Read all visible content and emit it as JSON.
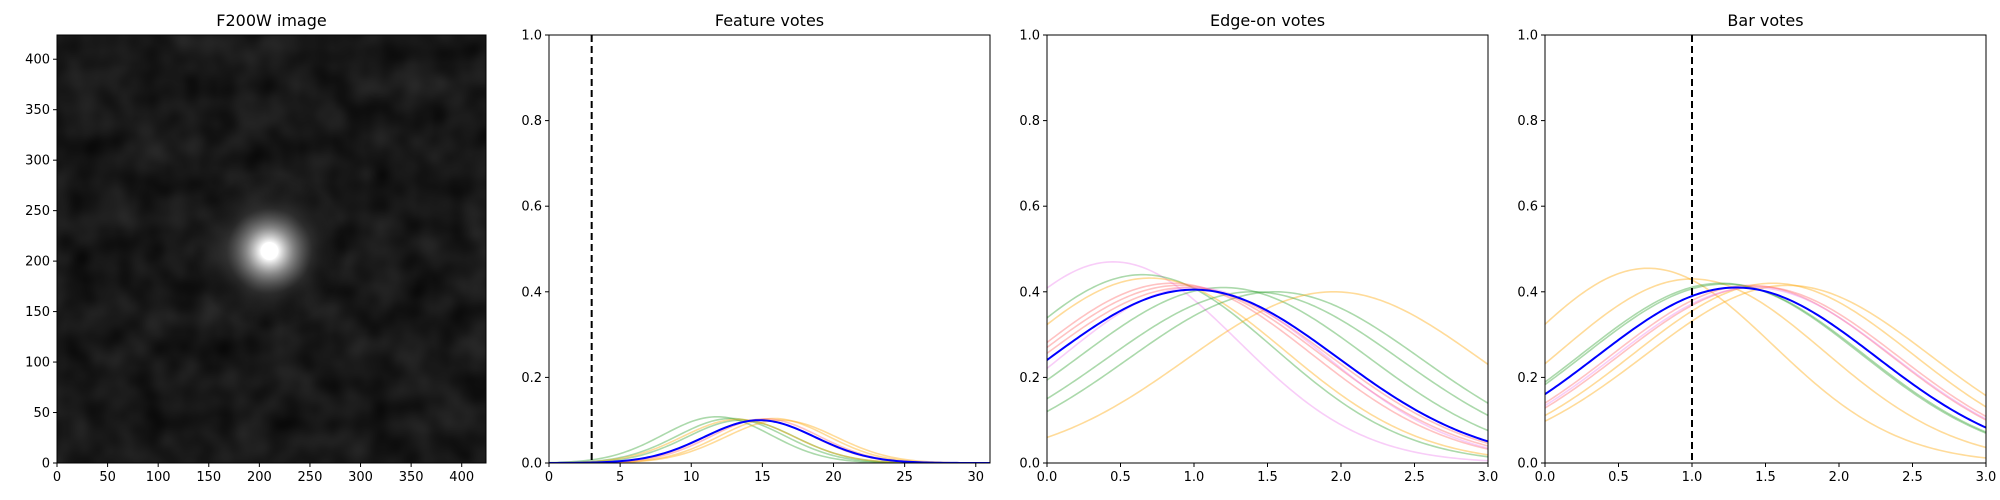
{
  "chart_data": [
    {
      "type": "image",
      "title": "F200W image",
      "xlim": [
        0,
        424
      ],
      "ylim": [
        424,
        0
      ],
      "x_ticks": [
        0,
        50,
        100,
        150,
        200,
        250,
        300,
        350,
        400
      ],
      "y_ticks": [
        0,
        50,
        100,
        150,
        200,
        250,
        300,
        350,
        400
      ],
      "source": {
        "x": 210,
        "y": 210
      },
      "colormap": "gray"
    },
    {
      "type": "line",
      "title": "Feature votes",
      "xlabel": "",
      "ylabel": "",
      "xlim": [
        0,
        31
      ],
      "ylim": [
        0,
        1.0
      ],
      "x_ticks": [
        0,
        5,
        10,
        15,
        20,
        25,
        30
      ],
      "y_ticks": [
        0.0,
        0.2,
        0.4,
        0.6,
        0.8,
        1.0
      ],
      "vline": 3,
      "curves": [
        {
          "color": "#2ca02c",
          "mu": 11.8,
          "sigma": 3.8,
          "peak": 0.108
        },
        {
          "color": "#2ca02c",
          "mu": 12.8,
          "sigma": 3.8,
          "peak": 0.104
        },
        {
          "color": "#2ca02c",
          "mu": 13.5,
          "sigma": 3.8,
          "peak": 0.1
        },
        {
          "color": "#ffa500",
          "mu": 15.8,
          "sigma": 3.8,
          "peak": 0.104
        },
        {
          "color": "#ffa500",
          "mu": 16.3,
          "sigma": 3.9,
          "peak": 0.1
        },
        {
          "color": "#ffa500",
          "mu": 13.3,
          "sigma": 3.9,
          "peak": 0.102
        },
        {
          "color": "#ff6666",
          "mu": 15.2,
          "sigma": 3.8,
          "peak": 0.103
        },
        {
          "color": "#ff6666",
          "mu": 14.8,
          "sigma": 3.8,
          "peak": 0.101
        }
      ],
      "series": [
        {
          "color": "#0000ff",
          "mu": 14.8,
          "sigma": 3.9,
          "peak": 0.1
        }
      ]
    },
    {
      "type": "line",
      "title": "Edge-on votes",
      "xlabel": "",
      "ylabel": "",
      "xlim": [
        0.0,
        3.0
      ],
      "ylim": [
        0,
        1.0
      ],
      "x_ticks": [
        0.0,
        0.5,
        1.0,
        1.5,
        2.0,
        2.5,
        3.0
      ],
      "y_ticks": [
        0.0,
        0.2,
        0.4,
        0.6,
        0.8,
        1.0
      ],
      "curves": [
        {
          "color": "#ee82ee",
          "mu": 0.45,
          "sigma": 0.85,
          "peak": 0.47
        },
        {
          "color": "#2ca02c",
          "mu": 0.65,
          "sigma": 0.9,
          "peak": 0.44
        },
        {
          "color": "#ffa500",
          "mu": 0.7,
          "sigma": 0.92,
          "peak": 0.432
        },
        {
          "color": "#2ca02c",
          "mu": 1.2,
          "sigma": 0.98,
          "peak": 0.41
        },
        {
          "color": "#2ca02c",
          "mu": 1.55,
          "sigma": 1.0,
          "peak": 0.4
        },
        {
          "color": "#ffa500",
          "mu": 1.95,
          "sigma": 1.0,
          "peak": 0.4
        },
        {
          "color": "#2ca02c",
          "mu": 1.4,
          "sigma": 1.0,
          "peak": 0.4
        },
        {
          "color": "#ff6666",
          "mu": 0.85,
          "sigma": 0.95,
          "peak": 0.42
        },
        {
          "color": "#ff6666",
          "mu": 0.9,
          "sigma": 0.97,
          "peak": 0.415
        },
        {
          "color": "#ff6666",
          "mu": 0.95,
          "sigma": 0.98,
          "peak": 0.41
        },
        {
          "color": "#ee82ee",
          "mu": 1.0,
          "sigma": 0.9,
          "peak": 0.41
        }
      ],
      "series": [
        {
          "color": "#0000ff",
          "mu": 1.0,
          "sigma": 0.98,
          "peak": 0.405
        }
      ]
    },
    {
      "type": "line",
      "title": "Bar votes",
      "xlabel": "",
      "ylabel": "",
      "xlim": [
        0.0,
        3.0
      ],
      "ylim": [
        0,
        1.0
      ],
      "x_ticks": [
        0.0,
        0.5,
        1.0,
        1.5,
        2.0,
        2.5,
        3.0
      ],
      "y_ticks": [
        0.0,
        0.2,
        0.4,
        0.6,
        0.8,
        1.0
      ],
      "vline": 1.0,
      "curves": [
        {
          "color": "#ffa500",
          "mu": 0.7,
          "sigma": 0.85,
          "peak": 0.455
        },
        {
          "color": "#ffa500",
          "mu": 1.0,
          "sigma": 0.9,
          "peak": 0.43
        },
        {
          "color": "#ffa500",
          "mu": 1.55,
          "sigma": 0.95,
          "peak": 0.42
        },
        {
          "color": "#ffa500",
          "mu": 1.65,
          "sigma": 0.97,
          "peak": 0.415
        },
        {
          "color": "#2ca02c",
          "mu": 1.2,
          "sigma": 0.95,
          "peak": 0.42
        },
        {
          "color": "#2ca02c",
          "mu": 1.22,
          "sigma": 0.95,
          "peak": 0.418
        },
        {
          "color": "#ff6666",
          "mu": 1.4,
          "sigma": 0.95,
          "peak": 0.415
        },
        {
          "color": "#ff6666",
          "mu": 1.45,
          "sigma": 0.95,
          "peak": 0.412
        },
        {
          "color": "#ee82ee",
          "mu": 1.42,
          "sigma": 0.95,
          "peak": 0.41
        }
      ],
      "series": [
        {
          "color": "#0000ff",
          "mu": 1.3,
          "sigma": 0.95,
          "peak": 0.41
        }
      ]
    }
  ]
}
